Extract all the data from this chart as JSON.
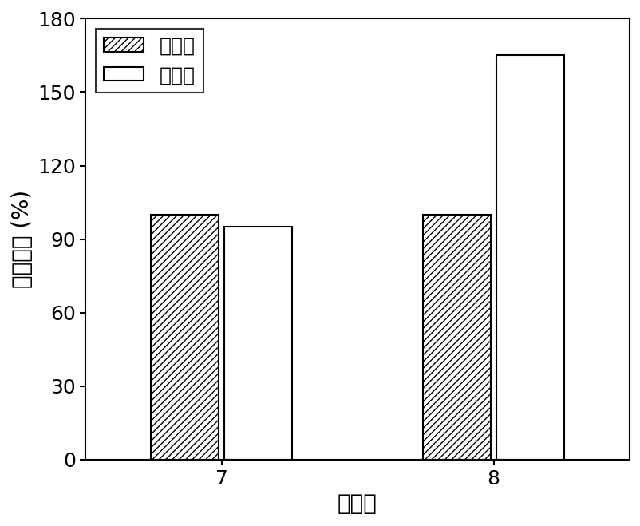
{
  "categories": [
    "7",
    "8"
  ],
  "control_values": [
    100,
    100
  ],
  "experiment_values": [
    95,
    165
  ],
  "ylabel": "细胞活性 (%)",
  "xlabel": "酸碱度",
  "ylim": [
    0,
    180
  ],
  "yticks": [
    0,
    30,
    60,
    90,
    120,
    150,
    180
  ],
  "legend_labels": [
    "对照组",
    "实验组"
  ],
  "bar_width": 0.25,
  "control_color": "white",
  "experiment_color": "white",
  "control_hatch": "////",
  "experiment_hatch": "",
  "edgecolor": "black",
  "fontsize_axis_label": 20,
  "fontsize_tick": 18,
  "fontsize_legend": 18,
  "figsize": [
    8.03,
    6.59
  ],
  "dpi": 100
}
